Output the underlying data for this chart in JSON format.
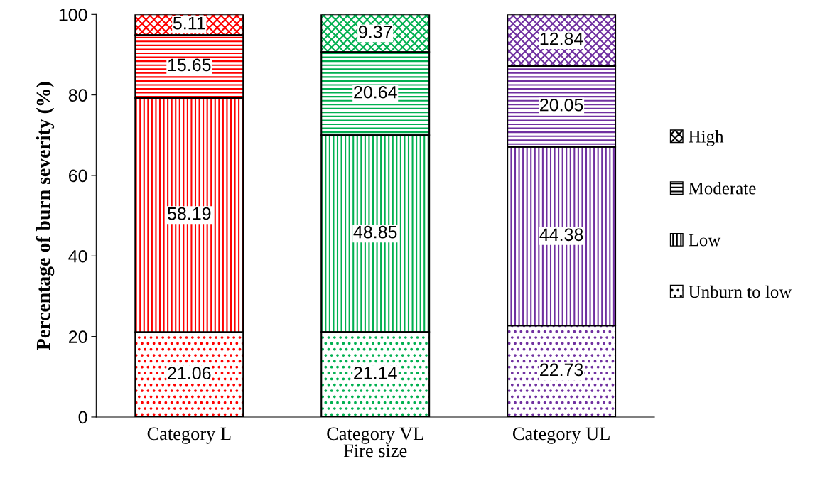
{
  "chart_data": {
    "type": "bar",
    "stacked": true,
    "xlabel": "Fire size",
    "ylabel": "Percentage of burn severity (%)",
    "categories": [
      "Category L",
      "Category VL",
      "Category UL"
    ],
    "series": [
      {
        "name": "Unburn to low",
        "color": "#000000",
        "colors": [
          "#ff0000",
          "#00b050",
          "#7030a0"
        ],
        "values": [
          21.06,
          21.14,
          22.73
        ]
      },
      {
        "name": "Low",
        "color": "#000000",
        "colors": [
          "#ff0000",
          "#00b050",
          "#7030a0"
        ],
        "values": [
          58.19,
          48.85,
          44.38
        ]
      },
      {
        "name": "Moderate",
        "color": "#000000",
        "colors": [
          "#ff0000",
          "#00b050",
          "#7030a0"
        ],
        "values": [
          15.65,
          20.64,
          20.05
        ]
      },
      {
        "name": "High",
        "color": "#000000",
        "colors": [
          "#ff0000",
          "#00b050",
          "#7030a0"
        ],
        "values": [
          5.11,
          9.37,
          12.84
        ]
      }
    ],
    "ylim": [
      0,
      100
    ],
    "yticks": [
      0,
      20,
      40,
      60,
      80,
      100
    ],
    "data_labels": true,
    "legend": "right",
    "grid": false
  }
}
